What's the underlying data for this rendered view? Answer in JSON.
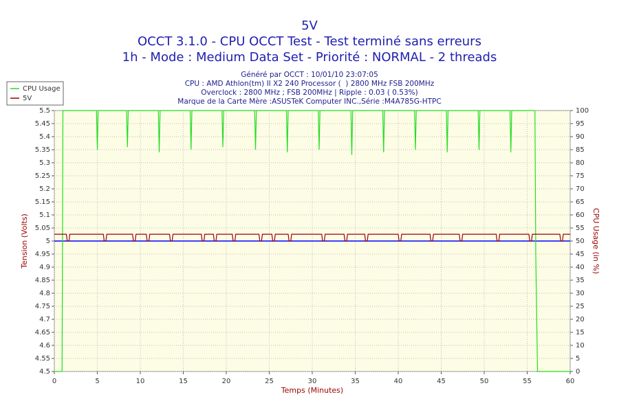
{
  "chart_data": {
    "type": "line",
    "title": "5V",
    "subtitle": [
      "OCCT 3.1.0 - CPU OCCT Test - Test terminé sans erreurs",
      "1h - Mode : Medium Data Set - Priorité : NORMAL - 2 threads"
    ],
    "info": [
      "Généré par OCCT : 10/01/10 23:07:05",
      "CPU : AMD Athlon(tm) II X2 240 Processor (  ) 2800 MHz FSB 200MHz",
      "Overclock : 2800 MHz ; FSB 200MHz | Ripple : 0.03 ( 0.53%)",
      "Marque de la Carte Mère :ASUSTeK Computer INC.,Série :M4A785G-HTPC"
    ],
    "xlabel": "Temps (Minutes)",
    "ylabel": "Tension (Volts)",
    "y2label": "CPU Usage (in %)",
    "xlim": [
      0,
      60
    ],
    "xticks": [
      0,
      5,
      10,
      15,
      20,
      25,
      30,
      35,
      40,
      45,
      50,
      55,
      60
    ],
    "ylim": [
      4.5,
      5.5
    ],
    "yticks": [
      4.5,
      4.55,
      4.6,
      4.65,
      4.7,
      4.75,
      4.8,
      4.85,
      4.9,
      4.95,
      5,
      5.05,
      5.1,
      5.15,
      5.2,
      5.25,
      5.3,
      5.35,
      5.4,
      5.45,
      5.5
    ],
    "y2lim": [
      0,
      100
    ],
    "y2ticks": [
      0,
      5,
      10,
      15,
      20,
      25,
      30,
      35,
      40,
      45,
      50,
      55,
      60,
      65,
      70,
      75,
      80,
      85,
      90,
      95,
      100
    ],
    "grid": true,
    "legend": "top-left",
    "reference_line": {
      "value": 5,
      "color": "#0000ff"
    },
    "series": [
      {
        "name": "CPU Usage",
        "color": "#22dd22",
        "axis": "y2",
        "x": [
          0,
          0.9,
          1.0,
          4.9,
          5.0,
          5.1,
          8.4,
          8.5,
          8.6,
          12.1,
          12.2,
          12.3,
          15.8,
          15.9,
          16.0,
          19.5,
          19.6,
          19.7,
          23.3,
          23.4,
          23.5,
          27.0,
          27.1,
          27.2,
          30.7,
          30.8,
          30.9,
          34.5,
          34.6,
          34.7,
          38.2,
          38.3,
          38.4,
          41.9,
          42.0,
          42.1,
          45.6,
          45.7,
          45.8,
          49.3,
          49.4,
          49.5,
          53.0,
          53.1,
          53.2,
          55.9,
          56.0,
          56.2,
          60
        ],
        "values": [
          0,
          0,
          100,
          100,
          85,
          100,
          100,
          86,
          100,
          100,
          84,
          100,
          100,
          85,
          100,
          100,
          86,
          100,
          100,
          85,
          100,
          100,
          84,
          100,
          100,
          85,
          100,
          100,
          83,
          100,
          100,
          84,
          100,
          100,
          85,
          100,
          100,
          84,
          100,
          100,
          85,
          100,
          100,
          84,
          100,
          100,
          45,
          0,
          0
        ]
      },
      {
        "name": "5V",
        "color": "#990000",
        "x": [
          0,
          1.4,
          1.5,
          1.7,
          1.8,
          5.7,
          5.8,
          6.0,
          6.1,
          9.1,
          9.2,
          9.4,
          9.5,
          10.7,
          10.8,
          11.0,
          11.1,
          13.4,
          13.5,
          13.7,
          13.8,
          17.1,
          17.2,
          17.4,
          17.5,
          18.5,
          18.6,
          18.8,
          18.9,
          20.7,
          20.8,
          21.0,
          21.1,
          23.8,
          23.9,
          24.1,
          24.2,
          25.3,
          25.4,
          25.6,
          25.7,
          27.2,
          27.3,
          27.5,
          27.6,
          31.1,
          31.2,
          31.4,
          31.5,
          33.7,
          33.8,
          34.0,
          34.1,
          36.1,
          36.2,
          36.4,
          36.5,
          40.0,
          40.1,
          40.3,
          40.4,
          43.7,
          43.8,
          44.0,
          44.1,
          47.1,
          47.2,
          47.4,
          47.5,
          51.4,
          51.5,
          51.7,
          51.8,
          55.2,
          55.3,
          55.5,
          55.6,
          58.8,
          58.9,
          59.1,
          59.2,
          60
        ],
        "values": [
          5.026,
          5.026,
          5,
          5,
          5.026,
          5.026,
          5,
          5,
          5.026,
          5.026,
          5,
          5,
          5.026,
          5.026,
          5,
          5,
          5.026,
          5.026,
          5,
          5,
          5.026,
          5.026,
          5,
          5,
          5.026,
          5.026,
          5,
          5,
          5.026,
          5.026,
          5,
          5,
          5.026,
          5.026,
          5,
          5,
          5.026,
          5.026,
          5,
          5,
          5.026,
          5.026,
          5,
          5,
          5.026,
          5.026,
          5,
          5,
          5.026,
          5.026,
          5,
          5,
          5.026,
          5.026,
          5,
          5,
          5.026,
          5.026,
          5,
          5,
          5.026,
          5.026,
          5,
          5,
          5.026,
          5.026,
          5,
          5,
          5.026,
          5.026,
          5,
          5,
          5.026,
          5.026,
          5,
          5,
          5.026,
          5.026,
          5,
          5,
          5.026,
          5.026
        ]
      }
    ]
  }
}
